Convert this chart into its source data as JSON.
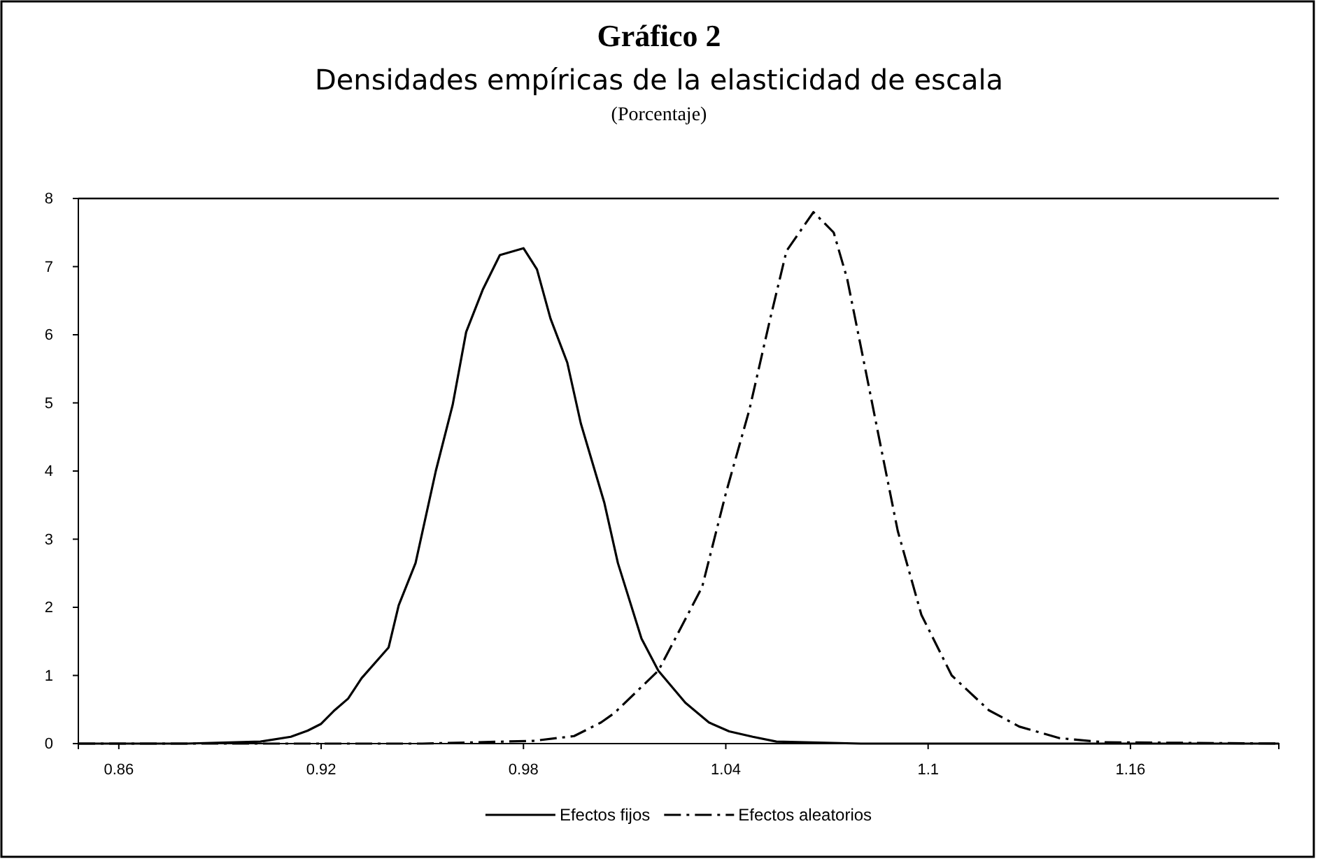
{
  "chart_data": {
    "type": "line",
    "title": "Gráfico 2",
    "subtitle": "Densidades empíricas de la elasticidad de escala",
    "annotations": [
      "(Porcentaje)"
    ],
    "xlim": [
      0.848,
      1.204
    ],
    "xticks": [
      0.86,
      0.92,
      0.98,
      1.04,
      1.1,
      1.16
    ],
    "ylim": [
      0,
      8
    ],
    "yticks": [
      0,
      1,
      2,
      3,
      4,
      5,
      6,
      7,
      8
    ],
    "legend": "bottom",
    "grid": false,
    "series": [
      {
        "name": "Efectos fijos",
        "color": "#000000",
        "line_style": "solid",
        "x": [
          0.848,
          0.88,
          0.902,
          0.911,
          0.916,
          0.92,
          0.924,
          0.928,
          0.932,
          0.94,
          0.943,
          0.948,
          0.954,
          0.959,
          0.963,
          0.968,
          0.973,
          0.98,
          0.984,
          0.988,
          0.993,
          0.997,
          1.004,
          1.008,
          1.015,
          1.02,
          1.028,
          1.035,
          1.041,
          1.048,
          1.055,
          1.08,
          1.204
        ],
        "values": [
          0,
          0,
          0.03,
          0.1,
          0.19,
          0.29,
          0.49,
          0.66,
          0.96,
          1.41,
          2.03,
          2.65,
          4.0,
          4.97,
          6.04,
          6.67,
          7.17,
          7.27,
          6.96,
          6.24,
          5.59,
          4.7,
          3.53,
          2.65,
          1.54,
          1.07,
          0.6,
          0.31,
          0.18,
          0.1,
          0.03,
          0,
          0
        ]
      },
      {
        "name": "Efectos aleatorios",
        "color": "#000000",
        "line_style": "dashed",
        "x": [
          0.848,
          0.95,
          0.983,
          0.995,
          1.003,
          1.007,
          1.02,
          1.025,
          1.033,
          1.04,
          1.047,
          1.053,
          1.058,
          1.066,
          1.072,
          1.076,
          1.081,
          1.086,
          1.091,
          1.098,
          1.107,
          1.118,
          1.127,
          1.139,
          1.152,
          1.204
        ],
        "values": [
          0,
          0,
          0.04,
          0.11,
          0.31,
          0.45,
          1.07,
          1.54,
          2.3,
          3.67,
          4.9,
          6.2,
          7.23,
          7.8,
          7.5,
          6.82,
          5.59,
          4.35,
          3.12,
          1.89,
          1.0,
          0.49,
          0.25,
          0.08,
          0.02,
          0
        ]
      }
    ]
  }
}
